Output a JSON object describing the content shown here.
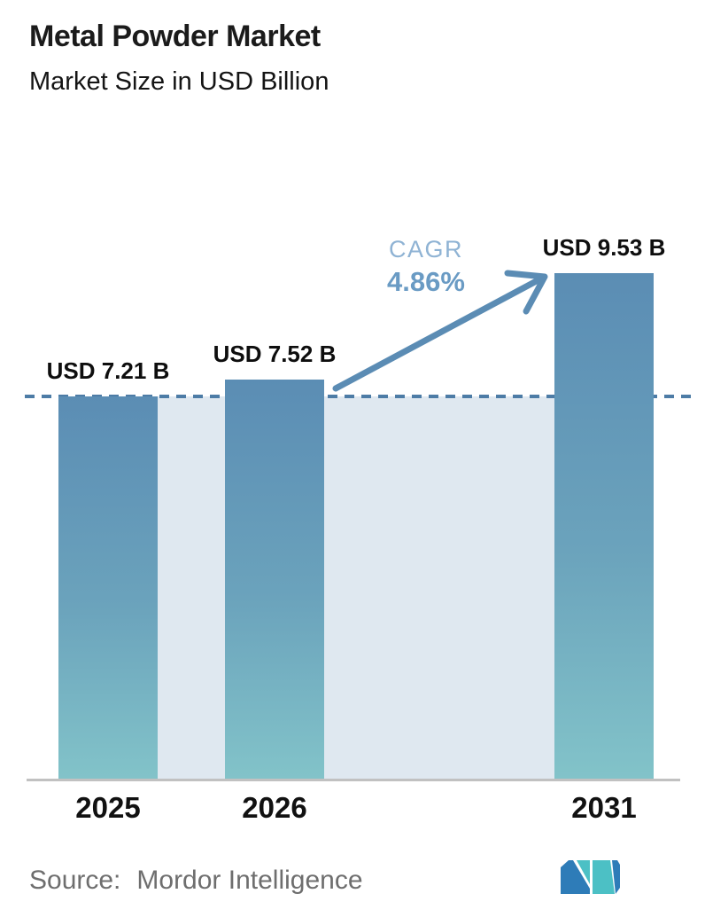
{
  "header": {
    "title": "Metal Powder Market",
    "subtitle": "Market Size in USD Billion"
  },
  "chart_data": {
    "type": "bar",
    "title": "Metal Powder Market",
    "subtitle": "Market Size in USD Billion",
    "categories": [
      "2025",
      "2026",
      "2031"
    ],
    "values": [
      7.21,
      7.52,
      9.53
    ],
    "value_labels": [
      "USD 7.21 B",
      "USD 7.52 B",
      "USD 9.53 B"
    ],
    "xlabel": "",
    "ylabel": "",
    "ylim": [
      0,
      10.6
    ],
    "grid": false,
    "legend": "none",
    "reference_line": {
      "value": 7.21,
      "style": "dashed"
    },
    "annotations": {
      "cagr_label": "CAGR",
      "cagr_value": "4.86%"
    },
    "colors": {
      "bar_top": "#5b8db4",
      "bar_bottom": "#82c3c9",
      "band": "#dfe8f0",
      "dashed_line": "#4d7ca6",
      "arrow": "#5b8cb4",
      "cagr_label": "#8fb3d4",
      "cagr_value": "#6a9bc4",
      "axis_line": "#c1c1c1",
      "label_text": "#0e0e0e"
    }
  },
  "footer": {
    "source_label": "Source:",
    "source_value": "Mordor Intelligence",
    "logo_colors": {
      "teal": "#4cc0c5",
      "blue": "#2e7cb8"
    }
  }
}
